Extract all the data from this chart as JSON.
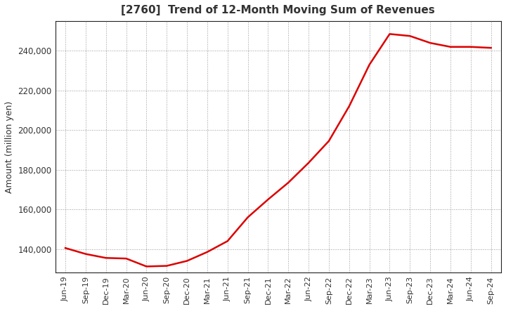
{
  "title": "[2760]  Trend of 12-Month Moving Sum of Revenues",
  "ylabel": "Amount (million yen)",
  "line_color": "#DD0000",
  "line_width": 1.8,
  "background_color": "#FFFFFF",
  "plot_background_color": "#FFFFFF",
  "grid_color": "#999999",
  "ylim": [
    128000,
    255000
  ],
  "yticks": [
    140000,
    160000,
    180000,
    200000,
    220000,
    240000
  ],
  "x_labels": [
    "Jun-19",
    "Sep-19",
    "Dec-19",
    "Mar-20",
    "Jun-20",
    "Sep-20",
    "Dec-20",
    "Mar-21",
    "Jun-21",
    "Sep-21",
    "Dec-21",
    "Mar-22",
    "Jun-22",
    "Sep-22",
    "Dec-22",
    "Mar-23",
    "Jun-23",
    "Sep-23",
    "Dec-23",
    "Mar-24",
    "Jun-24",
    "Sep-24"
  ],
  "values": [
    140500,
    137500,
    135500,
    135200,
    131200,
    131500,
    134000,
    138500,
    144000,
    156000,
    165000,
    173500,
    183500,
    194500,
    212000,
    233000,
    248500,
    247500,
    244000,
    242000,
    242000,
    241500
  ]
}
